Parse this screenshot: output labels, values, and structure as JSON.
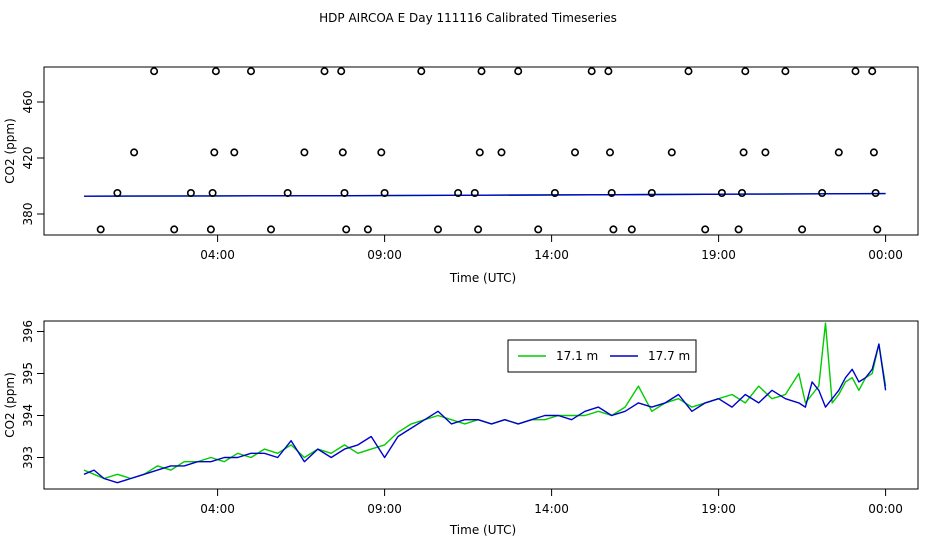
{
  "title": "HDP AIRCOA E  Day 111116  Calibrated Timeseries",
  "chart_data": [
    {
      "type": "scatter",
      "xlabel": "Time (UTC)",
      "ylabel": "CO2 (ppm)",
      "xlim": [
        0,
        24
      ],
      "ylim": [
        365,
        485
      ],
      "x_ticks": [
        {
          "value": 6,
          "label": "04:00"
        },
        {
          "value": 11,
          "label": "09:00"
        },
        {
          "value": 16,
          "label": "14:00"
        },
        {
          "value": 21,
          "label": "19:00"
        },
        {
          "value": 26,
          "label": "00:00"
        }
      ],
      "y_ticks": [
        {
          "value": 380,
          "label": "380"
        },
        {
          "value": 420,
          "label": "420"
        },
        {
          "value": 460,
          "label": "460"
        }
      ],
      "calibration_points": [
        {
          "x": 2.5,
          "y": 369
        },
        {
          "x": 3.0,
          "y": 395
        },
        {
          "x": 3.5,
          "y": 424
        },
        {
          "x": 4.1,
          "y": 482
        },
        {
          "x": 4.7,
          "y": 369
        },
        {
          "x": 5.2,
          "y": 395
        },
        {
          "x": 5.8,
          "y": 369
        },
        {
          "x": 5.85,
          "y": 395
        },
        {
          "x": 5.9,
          "y": 424
        },
        {
          "x": 5.95,
          "y": 482
        },
        {
          "x": 6.5,
          "y": 424
        },
        {
          "x": 7.0,
          "y": 482
        },
        {
          "x": 7.6,
          "y": 369
        },
        {
          "x": 8.1,
          "y": 395
        },
        {
          "x": 8.6,
          "y": 424
        },
        {
          "x": 9.2,
          "y": 482
        },
        {
          "x": 9.7,
          "y": 482
        },
        {
          "x": 9.75,
          "y": 424
        },
        {
          "x": 9.8,
          "y": 395
        },
        {
          "x": 9.85,
          "y": 369
        },
        {
          "x": 10.5,
          "y": 369
        },
        {
          "x": 10.9,
          "y": 424
        },
        {
          "x": 11.0,
          "y": 395
        },
        {
          "x": 12.1,
          "y": 482
        },
        {
          "x": 12.6,
          "y": 369
        },
        {
          "x": 13.2,
          "y": 395
        },
        {
          "x": 13.7,
          "y": 395
        },
        {
          "x": 13.8,
          "y": 369
        },
        {
          "x": 13.85,
          "y": 424
        },
        {
          "x": 13.9,
          "y": 482
        },
        {
          "x": 14.5,
          "y": 424
        },
        {
          "x": 15.0,
          "y": 482
        },
        {
          "x": 15.6,
          "y": 369
        },
        {
          "x": 16.1,
          "y": 395
        },
        {
          "x": 16.7,
          "y": 424
        },
        {
          "x": 17.2,
          "y": 482
        },
        {
          "x": 17.7,
          "y": 482
        },
        {
          "x": 17.75,
          "y": 424
        },
        {
          "x": 17.8,
          "y": 395
        },
        {
          "x": 17.85,
          "y": 369
        },
        {
          "x": 18.4,
          "y": 369
        },
        {
          "x": 19.0,
          "y": 395
        },
        {
          "x": 19.6,
          "y": 424
        },
        {
          "x": 20.1,
          "y": 482
        },
        {
          "x": 20.6,
          "y": 369
        },
        {
          "x": 21.1,
          "y": 395
        },
        {
          "x": 21.6,
          "y": 369
        },
        {
          "x": 21.7,
          "y": 395
        },
        {
          "x": 21.75,
          "y": 424
        },
        {
          "x": 21.8,
          "y": 482
        },
        {
          "x": 22.4,
          "y": 424
        },
        {
          "x": 23.0,
          "y": 482
        },
        {
          "x": 23.5,
          "y": 369
        },
        {
          "x": 24.1,
          "y": 395
        },
        {
          "x": 24.6,
          "y": 424
        },
        {
          "x": 25.1,
          "y": 482
        },
        {
          "x": 25.6,
          "y": 482
        },
        {
          "x": 25.65,
          "y": 424
        },
        {
          "x": 25.7,
          "y": 395
        },
        {
          "x": 25.75,
          "y": 369
        }
      ],
      "series": [
        {
          "color": "#00cc00",
          "x": [
            2,
            6,
            10,
            14,
            18,
            22,
            26
          ],
          "values": [
            392.7,
            392.9,
            393.1,
            393.4,
            393.8,
            394.2,
            394.6
          ]
        },
        {
          "color": "#0000cc",
          "x": [
            2,
            6,
            10,
            14,
            18,
            22,
            26
          ],
          "values": [
            392.7,
            392.9,
            393.1,
            393.4,
            393.8,
            394.2,
            394.6
          ]
        }
      ],
      "grid": false
    },
    {
      "type": "line",
      "xlabel": "Time (UTC)",
      "ylabel": "CO2 (ppm)",
      "xlim": [
        0,
        24
      ],
      "ylim": [
        392.25,
        396.25
      ],
      "x_ticks": [
        {
          "value": 6,
          "label": "04:00"
        },
        {
          "value": 11,
          "label": "09:00"
        },
        {
          "value": 16,
          "label": "14:00"
        },
        {
          "value": 21,
          "label": "19:00"
        },
        {
          "value": 26,
          "label": "00:00"
        }
      ],
      "y_ticks": [
        {
          "value": 393,
          "label": "393"
        },
        {
          "value": 394,
          "label": "394"
        },
        {
          "value": 395,
          "label": "395"
        },
        {
          "value": 396,
          "label": "396"
        }
      ],
      "legend_position": "top-right",
      "series": [
        {
          "name": "17.1 m",
          "color": "#00cc00",
          "x": [
            2.0,
            2.3,
            2.6,
            3.0,
            3.4,
            3.8,
            4.2,
            4.6,
            5.0,
            5.4,
            5.8,
            6.2,
            6.6,
            7.0,
            7.4,
            7.8,
            8.2,
            8.6,
            9.0,
            9.4,
            9.8,
            10.2,
            10.6,
            11.0,
            11.4,
            11.8,
            12.2,
            12.6,
            13.0,
            13.4,
            13.8,
            14.2,
            14.6,
            15.0,
            15.4,
            15.8,
            16.2,
            16.6,
            17.0,
            17.4,
            17.8,
            18.2,
            18.6,
            19.0,
            19.4,
            19.8,
            20.2,
            20.6,
            21.0,
            21.4,
            21.8,
            22.2,
            22.6,
            23.0,
            23.4,
            23.6,
            23.8,
            24.0,
            24.2,
            24.4,
            24.6,
            24.8,
            25.0,
            25.2,
            25.4,
            25.6,
            25.8,
            26.0
          ],
          "values": [
            392.7,
            392.6,
            392.5,
            392.6,
            392.5,
            392.6,
            392.8,
            392.7,
            392.9,
            392.9,
            393.0,
            392.9,
            393.1,
            393.0,
            393.2,
            393.1,
            393.3,
            393.0,
            393.2,
            393.1,
            393.3,
            393.1,
            393.2,
            393.3,
            393.6,
            393.8,
            393.9,
            394.0,
            393.9,
            393.8,
            393.9,
            393.8,
            393.9,
            393.8,
            393.9,
            393.9,
            394.0,
            394.0,
            394.0,
            394.1,
            394.0,
            394.2,
            394.7,
            394.1,
            394.3,
            394.4,
            394.2,
            394.3,
            394.4,
            394.5,
            394.3,
            394.7,
            394.4,
            394.5,
            395.0,
            394.3,
            394.5,
            394.7,
            396.2,
            394.3,
            394.5,
            394.8,
            394.9,
            394.6,
            394.9,
            395.0,
            395.7,
            394.7
          ]
        },
        {
          "name": "17.7 m",
          "color": "#0000cc",
          "x": [
            2.0,
            2.3,
            2.6,
            3.0,
            3.4,
            3.8,
            4.2,
            4.6,
            5.0,
            5.4,
            5.8,
            6.2,
            6.6,
            7.0,
            7.4,
            7.8,
            8.2,
            8.6,
            9.0,
            9.4,
            9.8,
            10.2,
            10.6,
            11.0,
            11.4,
            11.8,
            12.2,
            12.6,
            13.0,
            13.4,
            13.8,
            14.2,
            14.6,
            15.0,
            15.4,
            15.8,
            16.2,
            16.6,
            17.0,
            17.4,
            17.8,
            18.2,
            18.6,
            19.0,
            19.4,
            19.8,
            20.2,
            20.6,
            21.0,
            21.4,
            21.8,
            22.2,
            22.6,
            23.0,
            23.4,
            23.6,
            23.8,
            24.0,
            24.2,
            24.4,
            24.6,
            24.8,
            25.0,
            25.2,
            25.4,
            25.6,
            25.8,
            26.0
          ],
          "values": [
            392.6,
            392.7,
            392.5,
            392.4,
            392.5,
            392.6,
            392.7,
            392.8,
            392.8,
            392.9,
            392.9,
            393.0,
            393.0,
            393.1,
            393.1,
            393.0,
            393.4,
            392.9,
            393.2,
            393.0,
            393.2,
            393.3,
            393.5,
            393.0,
            393.5,
            393.7,
            393.9,
            394.1,
            393.8,
            393.9,
            393.9,
            393.8,
            393.9,
            393.8,
            393.9,
            394.0,
            394.0,
            393.9,
            394.1,
            394.2,
            394.0,
            394.1,
            394.3,
            394.2,
            394.3,
            394.5,
            394.1,
            394.3,
            394.4,
            394.2,
            394.5,
            394.3,
            394.6,
            394.4,
            394.3,
            394.2,
            394.8,
            394.6,
            394.2,
            394.4,
            394.6,
            394.9,
            395.1,
            394.8,
            394.9,
            395.1,
            395.7,
            394.6
          ]
        }
      ],
      "grid": false
    }
  ]
}
